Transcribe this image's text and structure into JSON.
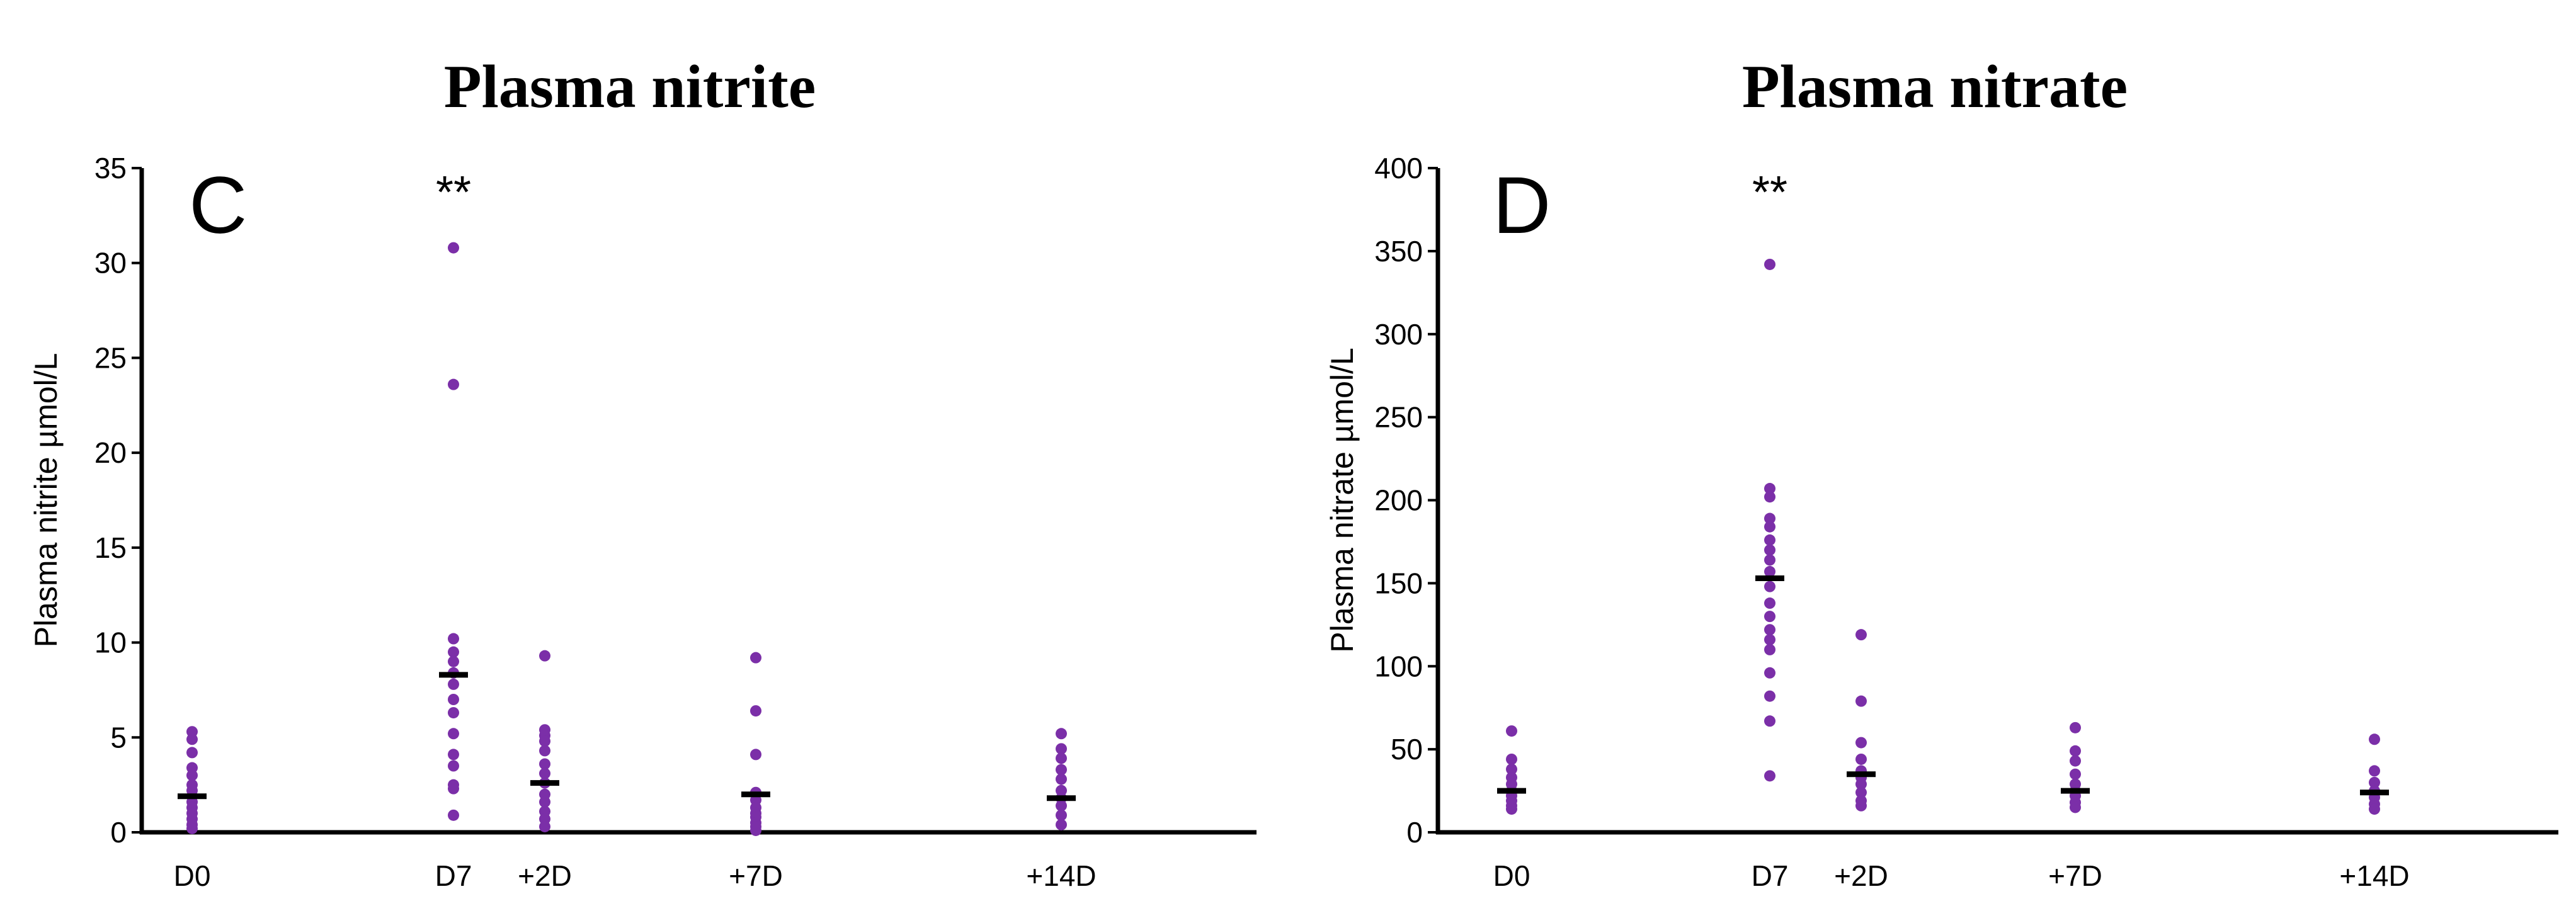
{
  "chart_data": [
    {
      "type": "scatter",
      "title": "Plasma nitrite",
      "panel": "C",
      "ylabel": "Plasma nitrite µmol/L",
      "ylim": [
        0,
        35
      ],
      "yticks": [
        0,
        5,
        10,
        15,
        20,
        25,
        30,
        35
      ],
      "categories": [
        "D0",
        "D7",
        "+2D",
        "+7D",
        "+14D"
      ],
      "annotations": [
        {
          "category": "D7",
          "text": "**"
        }
      ],
      "colors": {
        "points": "#7B2FA8",
        "mean": "#000000"
      },
      "groups": [
        {
          "category": "D0",
          "mean": 1.9,
          "points": [
            5.3,
            4.9,
            4.2,
            3.4,
            3.0,
            2.5,
            2.2,
            1.9,
            1.6,
            1.3,
            1.0,
            0.7,
            0.4,
            0.2
          ]
        },
        {
          "category": "D7",
          "mean": 8.3,
          "points": [
            30.8,
            23.6,
            10.2,
            9.5,
            9.0,
            8.4,
            7.8,
            7.0,
            6.3,
            5.2,
            4.1,
            3.5,
            2.5,
            2.3,
            0.9
          ]
        },
        {
          "category": "+2D",
          "mean": 2.6,
          "points": [
            9.3,
            5.4,
            5.1,
            4.8,
            4.3,
            3.6,
            3.1,
            2.6,
            2.0,
            1.6,
            1.1,
            0.7,
            0.3
          ]
        },
        {
          "category": "+7D",
          "mean": 2.0,
          "points": [
            9.2,
            6.4,
            4.1,
            2.1,
            1.7,
            1.3,
            1.0,
            0.8,
            0.5,
            0.3,
            0.1
          ]
        },
        {
          "category": "+14D",
          "mean": 1.8,
          "points": [
            5.2,
            4.4,
            3.9,
            3.3,
            2.8,
            2.2,
            1.8,
            1.4,
            0.9,
            0.4
          ]
        }
      ]
    },
    {
      "type": "scatter",
      "title": "Plasma nitrate",
      "panel": "D",
      "ylabel": "Plasma nitrate µmol/L",
      "ylim": [
        0,
        400
      ],
      "yticks": [
        0,
        50,
        100,
        150,
        200,
        250,
        300,
        350,
        400
      ],
      "categories": [
        "D0",
        "D7",
        "+2D",
        "+7D",
        "+14D"
      ],
      "annotations": [
        {
          "category": "D7",
          "text": "**"
        }
      ],
      "colors": {
        "points": "#7B2FA8",
        "mean": "#000000"
      },
      "groups": [
        {
          "category": "D0",
          "mean": 25,
          "points": [
            61,
            44,
            38,
            33,
            29,
            25,
            22,
            19,
            16,
            14
          ]
        },
        {
          "category": "D7",
          "mean": 153,
          "points": [
            342,
            207,
            202,
            189,
            184,
            176,
            170,
            164,
            157,
            148,
            138,
            130,
            122,
            116,
            110,
            96,
            82,
            67,
            34
          ]
        },
        {
          "category": "+2D",
          "mean": 35,
          "points": [
            119,
            79,
            54,
            44,
            37,
            33,
            29,
            24,
            19,
            16
          ]
        },
        {
          "category": "+7D",
          "mean": 25,
          "points": [
            63,
            49,
            43,
            35,
            29,
            25,
            22,
            18,
            15
          ]
        },
        {
          "category": "+14D",
          "mean": 24,
          "points": [
            56,
            37,
            30,
            25,
            21,
            17,
            14
          ]
        }
      ]
    }
  ]
}
